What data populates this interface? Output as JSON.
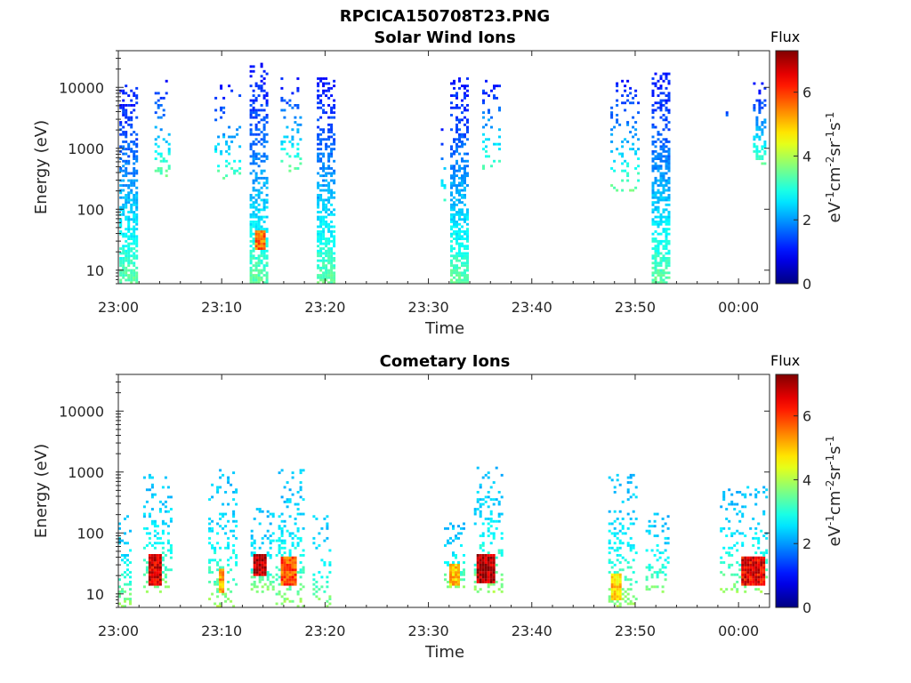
{
  "figure_title": "RPCICA150708T23.PNG",
  "chart_data": [
    {
      "type": "heatmap",
      "title": "Solar Wind Ions",
      "xlabel": "Time",
      "ylabel": "Energy (eV)",
      "y_scale": "log",
      "ylim": [
        6,
        40000
      ],
      "xlim_minutes": [
        0,
        63
      ],
      "xticks": [
        {
          "minute": 0,
          "label": "23:00"
        },
        {
          "minute": 10,
          "label": "23:10"
        },
        {
          "minute": 20,
          "label": "23:20"
        },
        {
          "minute": 30,
          "label": "23:30"
        },
        {
          "minute": 40,
          "label": "23:40"
        },
        {
          "minute": 50,
          "label": "23:50"
        },
        {
          "minute": 60,
          "label": "00:00"
        }
      ],
      "yticks": [
        {
          "value": 10,
          "label": "10"
        },
        {
          "value": 100,
          "label": "100"
        },
        {
          "value": 1000,
          "label": "1000"
        },
        {
          "value": 10000,
          "label": "10000"
        }
      ],
      "colorbar": {
        "title": "Flux",
        "label_parts": [
          "eV",
          "-1",
          "cm",
          "-2",
          "sr",
          "-1",
          "s",
          "-1"
        ],
        "range": [
          0,
          7.3
        ],
        "ticks": [
          {
            "value": 0,
            "label": "0"
          },
          {
            "value": 2,
            "label": "2"
          },
          {
            "value": 4,
            "label": "4"
          },
          {
            "value": 6,
            "label": "6"
          }
        ],
        "colormap": "jet"
      },
      "bursts": [
        {
          "start": 0.1,
          "end": 1.8,
          "emax": 11000,
          "emin": 6,
          "density": 0.55,
          "core": null
        },
        {
          "start": 3.5,
          "end": 4.8,
          "emax": 15000,
          "emin": 350,
          "density": 0.18,
          "core": null
        },
        {
          "start": 9.3,
          "end": 11.8,
          "emax": 12000,
          "emin": 300,
          "density": 0.14,
          "core": null
        },
        {
          "start": 12.7,
          "end": 14.5,
          "emax": 25000,
          "emin": 6,
          "density": 0.5,
          "core": {
            "start": 13.2,
            "end": 14.0,
            "emin": 22,
            "emax": 45,
            "value": 5.6
          }
        },
        {
          "start": 15.7,
          "end": 17.7,
          "emax": 15000,
          "emin": 400,
          "density": 0.16,
          "core": null
        },
        {
          "start": 19.2,
          "end": 20.9,
          "emax": 15000,
          "emin": 6,
          "density": 0.55,
          "core": null
        },
        {
          "start": 31.2,
          "end": 31.5,
          "emax": 3000,
          "emin": 100,
          "density": 0.12,
          "core": null
        },
        {
          "start": 32.1,
          "end": 33.8,
          "emax": 15000,
          "emin": 6,
          "density": 0.55,
          "core": null
        },
        {
          "start": 35.2,
          "end": 37.0,
          "emax": 15000,
          "emin": 420,
          "density": 0.18,
          "core": null
        },
        {
          "start": 47.6,
          "end": 50.2,
          "emax": 15000,
          "emin": 200,
          "density": 0.14,
          "core": null
        },
        {
          "start": 51.6,
          "end": 53.3,
          "emax": 18000,
          "emin": 6,
          "density": 0.55,
          "core": null
        },
        {
          "start": 58.5,
          "end": 58.8,
          "emax": 4000,
          "emin": 2500,
          "density": 0.2,
          "core": null
        },
        {
          "start": 61.4,
          "end": 62.6,
          "emax": 12000,
          "emin": 500,
          "density": 0.35,
          "core": null
        }
      ]
    },
    {
      "type": "heatmap",
      "title": "Cometary Ions",
      "xlabel": "Time",
      "ylabel": "Energy (eV)",
      "y_scale": "log",
      "ylim": [
        6,
        40000
      ],
      "xlim_minutes": [
        0,
        63
      ],
      "xticks": [
        {
          "minute": 0,
          "label": "23:00"
        },
        {
          "minute": 10,
          "label": "23:10"
        },
        {
          "minute": 20,
          "label": "23:20"
        },
        {
          "minute": 30,
          "label": "23:30"
        },
        {
          "minute": 40,
          "label": "23:40"
        },
        {
          "minute": 50,
          "label": "23:50"
        },
        {
          "minute": 60,
          "label": "00:00"
        }
      ],
      "yticks": [
        {
          "value": 10,
          "label": "10"
        },
        {
          "value": 100,
          "label": "100"
        },
        {
          "value": 1000,
          "label": "1000"
        },
        {
          "value": 10000,
          "label": "10000"
        }
      ],
      "colorbar": {
        "title": "Flux",
        "label_parts": [
          "eV",
          "-1",
          "cm",
          "-2",
          "sr",
          "-1",
          "s",
          "-1"
        ],
        "range": [
          0,
          7.3
        ],
        "ticks": [
          {
            "value": 0,
            "label": "0"
          },
          {
            "value": 2,
            "label": "2"
          },
          {
            "value": 4,
            "label": "4"
          },
          {
            "value": 6,
            "label": "6"
          }
        ],
        "colormap": "jet"
      },
      "bursts": [
        {
          "start": 0.0,
          "end": 1.2,
          "emax": 200,
          "emin": 6,
          "density": 0.25,
          "core": null
        },
        {
          "start": 2.4,
          "end": 5.0,
          "emax": 900,
          "emin": 10,
          "density": 0.22,
          "core": {
            "start": 2.8,
            "end": 4.2,
            "emin": 14,
            "emax": 45,
            "value": 6.6
          }
        },
        {
          "start": 8.7,
          "end": 11.3,
          "emax": 1100,
          "emin": 6,
          "density": 0.2,
          "core": {
            "start": 9.5,
            "end": 10.1,
            "emin": 10,
            "emax": 25,
            "value": 5.3
          }
        },
        {
          "start": 12.8,
          "end": 15.0,
          "emax": 250,
          "emin": 10,
          "density": 0.3,
          "core": {
            "start": 13.0,
            "end": 14.3,
            "emin": 20,
            "emax": 45,
            "value": 6.8
          }
        },
        {
          "start": 15.2,
          "end": 18.0,
          "emax": 1100,
          "emin": 6,
          "density": 0.22,
          "core": {
            "start": 15.5,
            "end": 17.2,
            "emin": 14,
            "emax": 40,
            "value": 5.8
          }
        },
        {
          "start": 18.8,
          "end": 20.5,
          "emax": 220,
          "emin": 6,
          "density": 0.18,
          "core": null
        },
        {
          "start": 31.5,
          "end": 33.5,
          "emax": 150,
          "emin": 12,
          "density": 0.25,
          "core": {
            "start": 31.8,
            "end": 33.0,
            "emin": 14,
            "emax": 30,
            "value": 5.0
          }
        },
        {
          "start": 34.4,
          "end": 37.2,
          "emax": 1200,
          "emin": 10,
          "density": 0.22,
          "core": {
            "start": 34.6,
            "end": 36.3,
            "emin": 15,
            "emax": 45,
            "value": 6.9
          }
        },
        {
          "start": 47.4,
          "end": 50.2,
          "emax": 900,
          "emin": 6,
          "density": 0.2,
          "core": {
            "start": 47.6,
            "end": 48.6,
            "emin": 8,
            "emax": 22,
            "value": 4.9
          }
        },
        {
          "start": 51.0,
          "end": 53.2,
          "emax": 220,
          "emin": 10,
          "density": 0.2,
          "core": null
        },
        {
          "start": 58.2,
          "end": 62.8,
          "emax": 600,
          "emin": 10,
          "density": 0.2,
          "core": {
            "start": 60.2,
            "end": 62.5,
            "emin": 14,
            "emax": 40,
            "value": 6.5
          }
        }
      ]
    }
  ]
}
